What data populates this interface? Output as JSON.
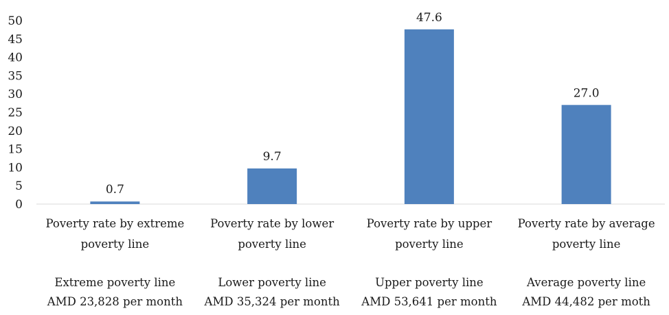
{
  "chart_data": {
    "type": "bar",
    "title": "",
    "xlabel": "",
    "ylabel": "",
    "ylim": [
      0,
      50
    ],
    "yticks": [
      0,
      5,
      10,
      15,
      20,
      25,
      30,
      35,
      40,
      45,
      50
    ],
    "grid": false,
    "legend": "none",
    "bar_color": "#4f81bd",
    "categories": [
      {
        "line1": "Poverty rate by extreme",
        "line2": "poverty line",
        "line3": "Extreme poverty line",
        "line4": "AMD 23,828 per month"
      },
      {
        "line1": "Poverty rate by lower",
        "line2": "poverty line",
        "line3": "Lower poverty line",
        "line4": "AMD 35,324  per month"
      },
      {
        "line1": "Poverty rate by upper",
        "line2": "poverty line",
        "line3": "Upper poverty line",
        "line4": "AMD 53,641 per month"
      },
      {
        "line1": "Poverty rate by average",
        "line2": "poverty line",
        "line3": "Average poverty line",
        "line4": "AMD 44,482 per moth"
      }
    ],
    "values": [
      0.7,
      9.7,
      47.6,
      27.0
    ],
    "data_labels": [
      "0.7",
      "9.7",
      "47.6",
      "27.0"
    ]
  }
}
